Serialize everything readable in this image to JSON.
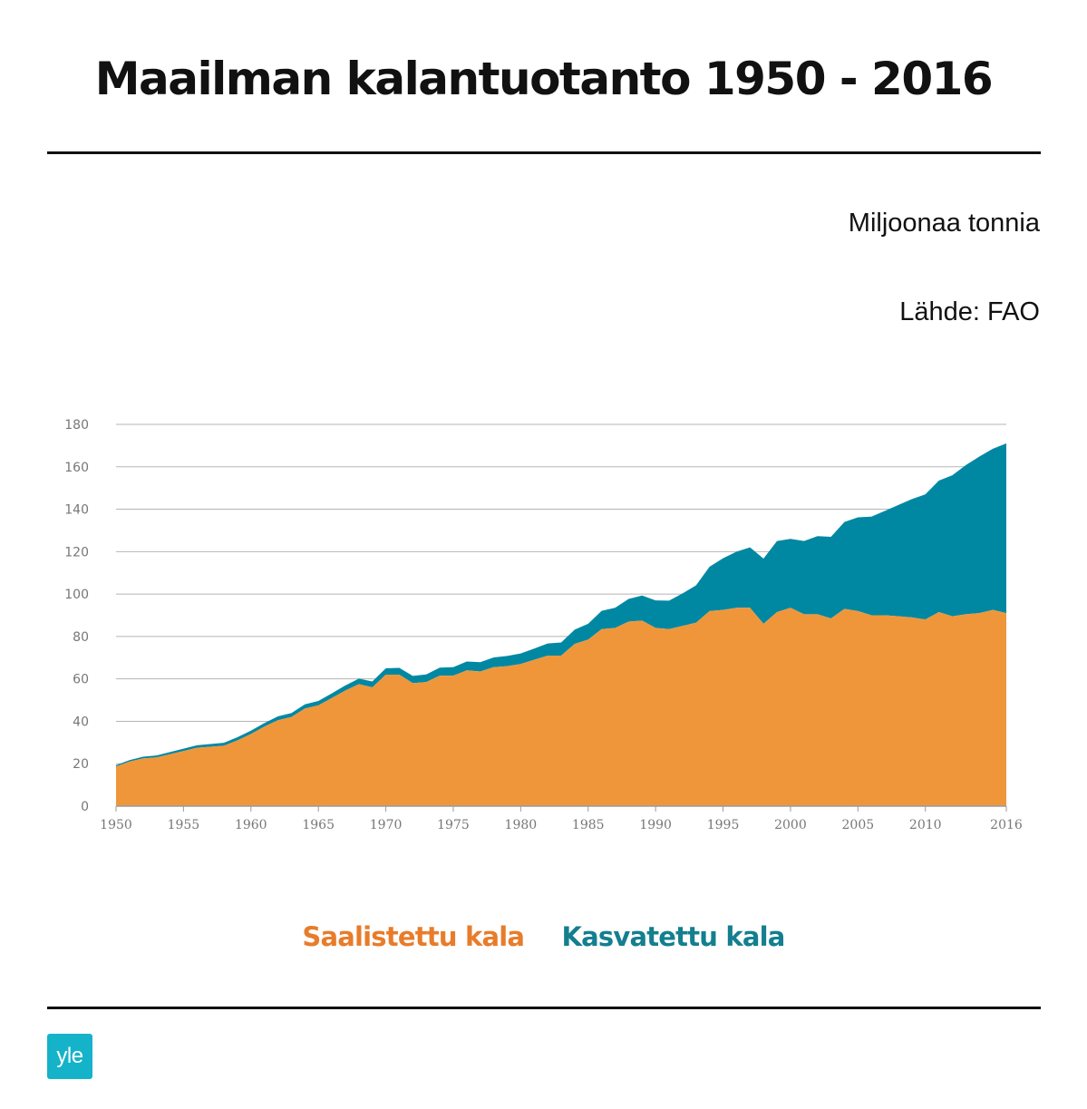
{
  "header": {
    "title": "Maailman kalantuotanto 1950 - 2016"
  },
  "notes": {
    "unit": "Miljoonaa tonnia",
    "source": "Lähde: FAO"
  },
  "colors": {
    "captured": "#f0963a",
    "farmed": "#0088a3",
    "captured_text": "#e87c2a",
    "farmed_text": "#137f8f",
    "logo": "#14b3c9",
    "grid": "#b5b5b5",
    "axis_text": "#777777"
  },
  "legend": {
    "captured_label": "Saalistettu kala",
    "farmed_label": "Kasvatettu kala"
  },
  "logo": {
    "text": "yle"
  },
  "chart_data": {
    "type": "area",
    "stacked": true,
    "ylim": [
      0,
      180
    ],
    "xlim": [
      1950,
      2016
    ],
    "yticks": [
      "0",
      "20",
      "40",
      "60",
      "80",
      "100",
      "120",
      "140",
      "160",
      "180"
    ],
    "xticks": [
      "1950",
      "1955",
      "1960",
      "1965",
      "1970",
      "1975",
      "1980",
      "1985",
      "1990",
      "1995",
      "2000",
      "2005",
      "2010",
      "2016"
    ],
    "grid": true,
    "x": [
      1950,
      1951,
      1952,
      1953,
      1954,
      1955,
      1956,
      1957,
      1958,
      1959,
      1960,
      1961,
      1962,
      1963,
      1964,
      1965,
      1966,
      1967,
      1968,
      1969,
      1970,
      1971,
      1972,
      1973,
      1974,
      1975,
      1976,
      1977,
      1978,
      1979,
      1980,
      1981,
      1982,
      1983,
      1984,
      1985,
      1986,
      1987,
      1988,
      1989,
      1990,
      1991,
      1992,
      1993,
      1994,
      1995,
      1996,
      1997,
      1998,
      1999,
      2000,
      2001,
      2002,
      2003,
      2004,
      2005,
      2006,
      2007,
      2008,
      2009,
      2010,
      2011,
      2012,
      2013,
      2014,
      2015,
      2016
    ],
    "series": [
      {
        "name": "Saalistettu kala",
        "values": [
          18.7,
          21.0,
          22.5,
          23.0,
          24.5,
          26.0,
          27.5,
          28.0,
          28.5,
          31.0,
          34.0,
          37.5,
          40.5,
          42.0,
          46.0,
          47.5,
          51.0,
          54.5,
          57.5,
          56.0,
          62.0,
          62.0,
          58.0,
          58.5,
          61.5,
          61.5,
          64.0,
          63.5,
          65.5,
          66.0,
          67.0,
          69.0,
          71.0,
          71.0,
          76.5,
          78.5,
          83.5,
          84.0,
          87.0,
          87.5,
          84.0,
          83.5,
          85.0,
          86.5,
          92.0,
          92.5,
          93.5,
          93.5,
          86.0,
          91.5,
          93.5,
          90.5,
          90.5,
          88.5,
          93.0,
          92.0,
          90.0,
          90.0,
          89.5,
          89.0,
          88.0,
          91.5,
          89.5,
          90.5,
          91.0,
          92.5,
          91.0
        ]
      },
      {
        "name": "Kasvatettu kala",
        "values": [
          0.6,
          0.7,
          0.8,
          0.9,
          1.0,
          1.1,
          1.2,
          1.3,
          1.4,
          1.5,
          1.6,
          1.7,
          1.8,
          1.9,
          2.0,
          2.1,
          2.2,
          2.4,
          2.6,
          2.8,
          3.0,
          3.2,
          3.4,
          3.6,
          3.8,
          4.0,
          4.2,
          4.4,
          4.6,
          4.8,
          5.0,
          5.3,
          5.7,
          6.2,
          6.7,
          7.5,
          8.6,
          9.5,
          10.7,
          11.8,
          13.0,
          13.4,
          15.3,
          17.6,
          20.9,
          24.4,
          26.5,
          28.5,
          30.7,
          33.5,
          32.5,
          34.5,
          36.8,
          38.5,
          41.0,
          44.2,
          46.5,
          49.2,
          52.5,
          55.8,
          59.0,
          62.0,
          66.5,
          70.3,
          73.8,
          76.0,
          80.0
        ]
      }
    ]
  }
}
